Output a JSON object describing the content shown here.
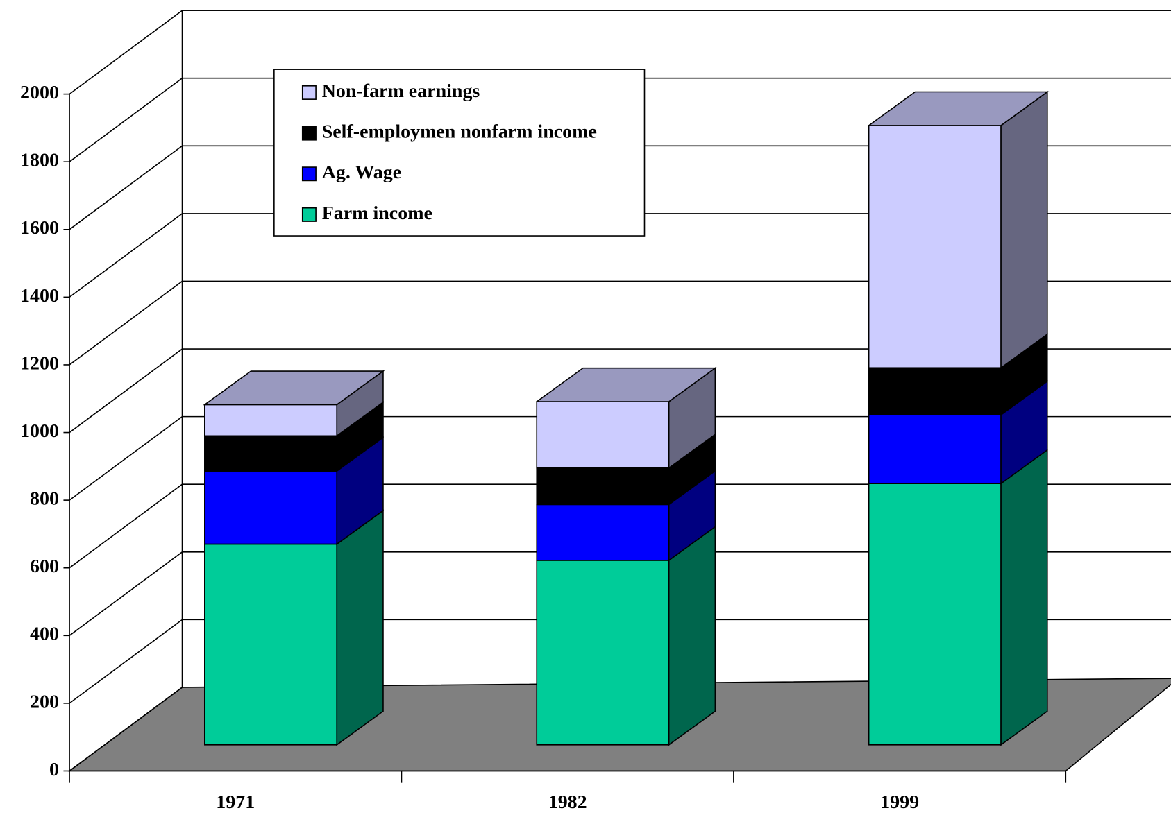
{
  "chart_data": {
    "type": "bar3d_stacked",
    "categories": [
      "1971",
      "1982",
      "1999"
    ],
    "series": [
      {
        "name": "Farm income",
        "color": "#00CC99",
        "values": [
          593,
          545,
          772
        ]
      },
      {
        "name": "Ag. Wage",
        "color": "#0000FF",
        "values": [
          216,
          165,
          203
        ]
      },
      {
        "name": "Self-employmen nonfarm income",
        "color": "#000000",
        "values": [
          104,
          108,
          139
        ]
      },
      {
        "name": "Non-farm earnings",
        "color": "#CCCCFF",
        "values": [
          92,
          196,
          716
        ]
      }
    ],
    "ylim": [
      0,
      2000
    ],
    "yticks": [
      0,
      200,
      400,
      600,
      800,
      1000,
      1200,
      1400,
      1600,
      1800,
      2000
    ],
    "grid": true,
    "legend": "top-left"
  }
}
